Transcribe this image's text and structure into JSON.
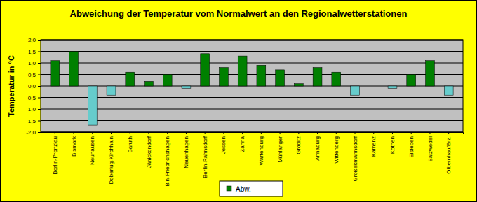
{
  "chart_data": {
    "type": "bar",
    "title": "Abweichung der Temperatur vom Normalwert an den Regionalwetterstationen",
    "y_label": "Temperatur in °C",
    "categories": [
      "Berlin-Prenzlau",
      "Bismark",
      "Neuhausen",
      "Doberlug-Kirchhain",
      "Baruth",
      "Jänickendorf",
      "Bln-Friedrichshagen",
      "Neuenhagen",
      "Berlin-Rahnsdorf",
      "Jessen",
      "Zahna",
      "Wartenburg",
      "Mühlanger",
      "Gröditz",
      "Annaburg",
      "Wittenberg",
      "Großekmannsdorf",
      "Kamenz",
      "Köthen",
      "Eisleben",
      "Salzwedel",
      "Olbernhau/Erz."
    ],
    "series": [
      {
        "name": "Abw.",
        "color": "#008000",
        "values": [
          1.1,
          1.5,
          -1.7,
          -0.4,
          0.6,
          0.2,
          0.5,
          -0.1,
          1.4,
          0.8,
          1.3,
          0.9,
          0.7,
          0.1,
          0.8,
          0.6,
          -0.4,
          0,
          -0.1,
          0.5,
          1.1,
          -0.4
        ],
        "colors": [
          "#008000",
          "#008000",
          "#66cccc",
          "#66cccc",
          "#008000",
          "#008000",
          "#008000",
          "#66cccc",
          "#008000",
          "#008000",
          "#008000",
          "#008000",
          "#008000",
          "#008000",
          "#008000",
          "#008000",
          "#66cccc",
          "#008000",
          "#66cccc",
          "#008000",
          "#008000",
          "#66cccc"
        ]
      }
    ],
    "ylim": [
      -2,
      2
    ],
    "yticks": [
      {
        "value": 2,
        "label": "2,0"
      },
      {
        "value": 1.5,
        "label": "1,5"
      },
      {
        "value": 1,
        "label": "1,0"
      },
      {
        "value": 0.5,
        "label": "0,5"
      },
      {
        "value": 0,
        "label": "0,0"
      },
      {
        "value": -0.5,
        "label": "-0,5"
      },
      {
        "value": -1,
        "label": "-1,0"
      },
      {
        "value": -1.5,
        "label": "-1,5"
      },
      {
        "value": -2,
        "label": "-2,0"
      }
    ],
    "grid": true,
    "legend": "bottom"
  }
}
